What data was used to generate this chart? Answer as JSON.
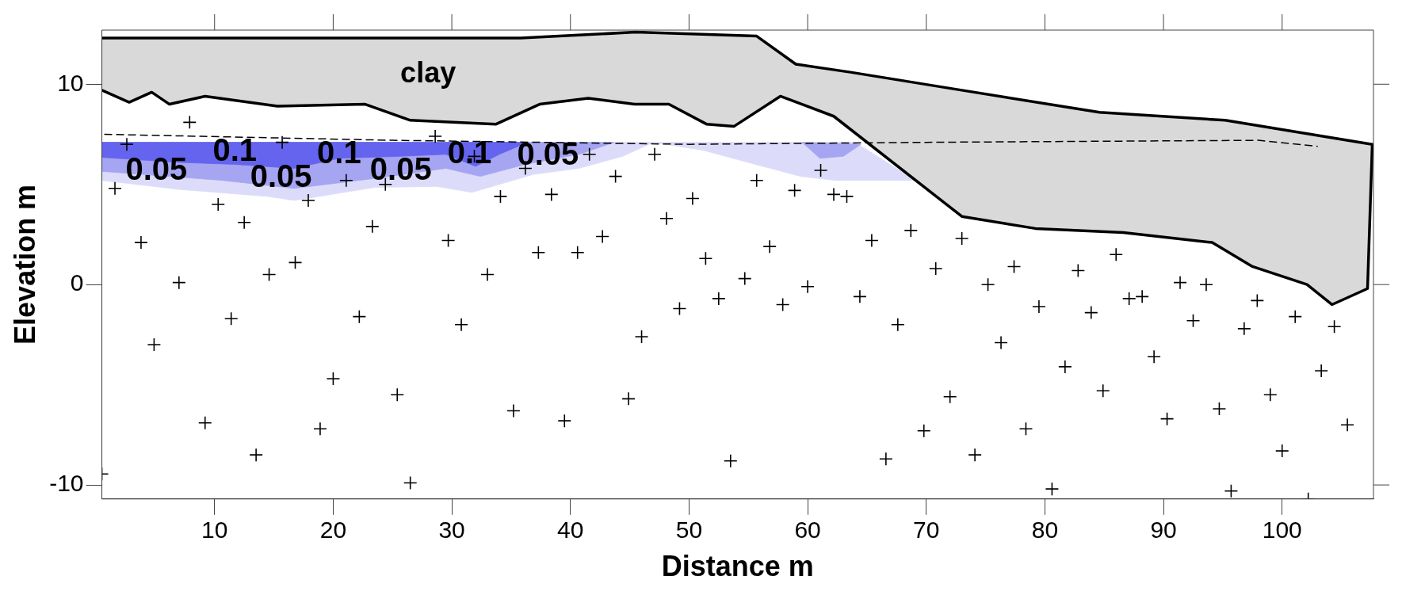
{
  "chart_data": {
    "type": "scatter",
    "xlabel": "Distance m",
    "ylabel": "Elevation m",
    "xlim": [
      0.5,
      107.7
    ],
    "ylim": [
      -10.7,
      12.7
    ],
    "xticks": [
      10,
      20,
      30,
      40,
      50,
      60,
      70,
      80,
      90,
      100
    ],
    "yticks": [
      -10,
      0,
      10
    ],
    "grid": false,
    "legend": false,
    "series": [
      {
        "type": "area",
        "color": "#dcdcfa",
        "x": [
          0.5,
          64,
          69.1,
          62.4,
          59.4,
          55.6,
          51.2,
          47,
          44.4,
          40.7,
          36.9,
          31.7,
          28.7,
          23.5,
          16.7,
          14.5,
          7,
          0.5
        ],
        "values": [
          7.1,
          7.1,
          5.2,
          5.2,
          5.4,
          6.0,
          6.7,
          7.1,
          6.4,
          5.8,
          5.5,
          4.6,
          4.9,
          4.85,
          4.2,
          4.4,
          4.75,
          5.2
        ]
      },
      {
        "type": "area",
        "color": "#a5a5f2",
        "x": [
          0.5,
          43.7,
          40.7,
          36.2,
          32.4,
          29.5,
          23.5,
          16.7,
          10.7,
          0.5
        ],
        "values": [
          7.1,
          7.1,
          6.5,
          6.0,
          5.4,
          5.8,
          5.3,
          4.8,
          5.2,
          5.65
        ]
      },
      {
        "type": "area",
        "color": "#a5a5f2",
        "x": [
          59.5,
          64.5,
          63,
          61
        ],
        "values": [
          7.1,
          7.0,
          6.4,
          6.3
        ]
      },
      {
        "type": "area",
        "color": "#6464ee",
        "x": [
          0.5,
          36.4,
          34,
          32,
          29.5,
          25.5,
          20.5,
          16.7,
          11.7,
          7,
          0.5
        ],
        "values": [
          7.1,
          7.1,
          6.5,
          5.9,
          6.5,
          6.4,
          6.3,
          5.8,
          6.0,
          6.1,
          6.35
        ]
      },
      {
        "type": "area",
        "color": "#d9d9d9",
        "x": [
          0.5,
          35.8,
          45.5,
          55.7,
          59,
          63.6,
          73,
          84.6,
          95.2,
          107.6,
          107.2,
          104.2,
          102.1,
          97.5,
          94.1,
          86.6,
          79.2,
          73,
          62.2,
          57.7,
          53.8,
          51.5,
          48.3,
          45.4,
          41.5,
          37.4,
          33.7,
          26.5,
          22.7,
          15.3,
          9.2,
          6.2,
          4.7,
          2.8,
          0.5
        ],
        "values": [
          12.3,
          12.3,
          12.6,
          12.4,
          11.0,
          10.6,
          9.7,
          8.6,
          8.2,
          7.0,
          -0.2,
          -1.0,
          0.0,
          0.9,
          2.1,
          2.6,
          2.8,
          3.4,
          8.4,
          9.4,
          7.9,
          8.0,
          9.0,
          9.0,
          9.3,
          9.0,
          8.0,
          8.2,
          9.0,
          8.9,
          9.4,
          9.0,
          9.6,
          9.1,
          9.7
        ]
      },
      {
        "type": "line",
        "color": "#000000",
        "line_style": "dashed",
        "x": [
          0.7,
          25,
          50,
          70,
          98,
          103
        ],
        "values": [
          7.5,
          7.2,
          7.0,
          7.1,
          7.2,
          6.9
        ]
      },
      {
        "type": "scatter",
        "color": "#000000",
        "marker": "cross",
        "x": [
          0.5,
          1.6,
          2.6,
          3.8,
          4.9,
          7.0,
          7.9,
          9.2,
          11.4,
          10.3,
          12.5,
          13.5,
          14.6,
          15.7,
          16.8,
          17.9,
          18.9,
          20.0,
          21.1,
          22.2,
          23.3,
          24.4,
          25.4,
          26.5,
          28.6,
          29.7,
          30.8,
          31.9,
          33.0,
          34.1,
          35.2,
          36.2,
          37.3,
          38.4,
          39.5,
          40.6,
          41.6,
          42.7,
          43.8,
          44.9,
          46.0,
          47.1,
          48.1,
          49.2,
          50.3,
          51.4,
          52.5,
          53.5,
          54.7,
          55.7,
          56.8,
          57.9,
          58.9,
          60.0,
          61.1,
          62.2,
          63.3,
          64.4,
          65.4,
          66.6,
          67.6,
          68.7,
          69.8,
          70.8,
          72.0,
          73.0,
          74.1,
          75.2,
          76.3,
          77.4,
          78.4,
          79.5,
          80.6,
          81.7,
          82.8,
          83.9,
          84.9,
          86.0,
          87.1,
          88.2,
          89.2,
          90.3,
          91.4,
          92.5,
          93.6,
          94.7,
          95.7,
          96.8,
          97.9,
          99.0,
          100.0,
          101.1,
          102.2,
          103.3,
          104.4,
          105.5
        ],
        "values": [
          -9.45,
          4.8,
          7.0,
          2.1,
          -3.0,
          0.1,
          8.1,
          -6.9,
          -1.7,
          4.0,
          3.1,
          -8.5,
          0.5,
          7.1,
          1.1,
          4.2,
          -7.2,
          -4.7,
          5.2,
          -1.6,
          2.9,
          5.0,
          -5.5,
          -9.9,
          7.4,
          2.2,
          -2.0,
          6.4,
          0.5,
          4.4,
          -6.3,
          5.8,
          1.6,
          4.5,
          -6.8,
          1.6,
          6.5,
          2.4,
          5.4,
          -5.7,
          -2.6,
          6.5,
          3.3,
          -1.2,
          4.3,
          1.3,
          -0.7,
          -8.8,
          0.3,
          5.2,
          1.9,
          -1.0,
          4.7,
          -0.1,
          5.7,
          4.5,
          4.4,
          -0.6,
          2.2,
          -8.7,
          -2.0,
          2.7,
          -7.3,
          0.8,
          -5.6,
          2.3,
          -8.5,
          0.0,
          -2.9,
          0.9,
          -7.2,
          -1.1,
          -10.2,
          -4.1,
          0.7,
          -1.4,
          -5.3,
          1.5,
          -0.7,
          -0.6,
          -3.6,
          -6.7,
          0.1,
          -1.8,
          0.0,
          -6.2,
          -10.3,
          -2.2,
          -0.8,
          -5.5,
          -8.3,
          -1.6,
          -10.7,
          -4.3,
          -2.1,
          -7.0
        ]
      }
    ],
    "annotations": [
      "clay",
      "0.05",
      "0.1",
      "0.05",
      "0.1",
      "0.05",
      "0.1",
      "0.05"
    ]
  }
}
